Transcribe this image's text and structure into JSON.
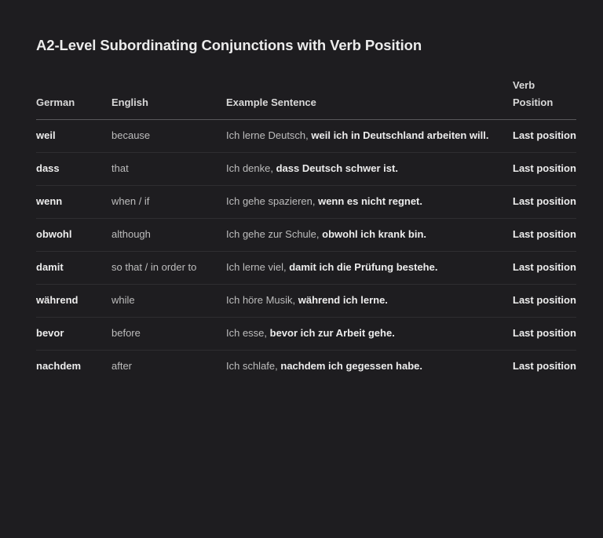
{
  "title": "A2-Level Subordinating Conjunctions with Verb Position",
  "table": {
    "headers": {
      "german": "German",
      "english": "English",
      "example": "Example Sentence",
      "verb_position": "Verb Position"
    },
    "rows": [
      {
        "german": "weil",
        "english": "because",
        "example_plain": "Ich lerne Deutsch, ",
        "example_bold": "weil ich in Deutschland arbeiten will.",
        "verb_position": "Last position"
      },
      {
        "german": "dass",
        "english": "that",
        "example_plain": "Ich denke, ",
        "example_bold": "dass Deutsch schwer ist.",
        "verb_position": "Last position"
      },
      {
        "german": "wenn",
        "english": "when / if",
        "example_plain": "Ich gehe spazieren, ",
        "example_bold": "wenn es nicht regnet.",
        "verb_position": "Last position"
      },
      {
        "german": "obwohl",
        "english": "although",
        "example_plain": "Ich gehe zur Schule, ",
        "example_bold": "obwohl ich krank bin.",
        "verb_position": "Last position"
      },
      {
        "german": "damit",
        "english": "so that / in order to",
        "example_plain": "Ich lerne viel, ",
        "example_bold": "damit ich die Prüfung bestehe.",
        "verb_position": "Last position"
      },
      {
        "german": "während",
        "english": "while",
        "example_plain": "Ich höre Musik, ",
        "example_bold": "während ich lerne.",
        "verb_position": "Last position"
      },
      {
        "german": "bevor",
        "english": "before",
        "example_plain": "Ich esse, ",
        "example_bold": "bevor ich zur Arbeit gehe.",
        "verb_position": "Last position"
      },
      {
        "german": "nachdem",
        "english": "after",
        "example_plain": "Ich schlafe, ",
        "example_bold": "nachdem ich gegessen habe.",
        "verb_position": "Last position"
      }
    ]
  },
  "colors": {
    "background": "#1e1d20",
    "text_strong": "#ededed",
    "text_muted": "#bdbdbd",
    "header_rule": "#5a595c",
    "row_rule": "#2f2e31"
  }
}
